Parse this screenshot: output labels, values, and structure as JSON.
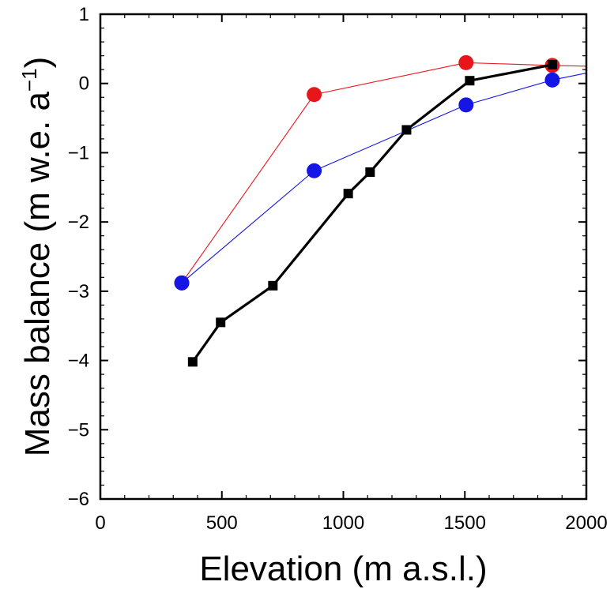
{
  "chart_data": {
    "type": "line",
    "title": "",
    "xlabel": "Elevation (m a.s.l.)",
    "ylabel_parts": {
      "main": "Mass balance (m w.e. a",
      "sup": "−1",
      "close": ")"
    },
    "xlim": [
      0,
      2000
    ],
    "ylim": [
      -6,
      1
    ],
    "xticks": [
      0,
      500,
      1000,
      1500,
      2000
    ],
    "xtick_labels": [
      "0",
      "500",
      "1000",
      "1500",
      "2000"
    ],
    "yticks": [
      -6,
      -5,
      -4,
      -3,
      -2,
      -1,
      0,
      1
    ],
    "ytick_labels": [
      "−6",
      "−5",
      "−4",
      "−3",
      "−2",
      "−1",
      "0",
      "1"
    ],
    "x_minor_step": 100,
    "y_minor_step": 0.2,
    "grid": false,
    "series": [
      {
        "color": "#e8161b",
        "marker": "circle",
        "line_width": "thin",
        "points": [
          {
            "x": 335,
            "y": -2.88
          },
          {
            "x": 880,
            "y": -0.16
          },
          {
            "x": 1505,
            "y": 0.3
          },
          {
            "x": 1860,
            "y": 0.26
          },
          {
            "x": 2000,
            "y": 0.25
          }
        ],
        "marker_count": 4
      },
      {
        "color": "#1515e6",
        "marker": "circle",
        "line_width": "thin",
        "points": [
          {
            "x": 335,
            "y": -2.88
          },
          {
            "x": 880,
            "y": -1.26
          },
          {
            "x": 1505,
            "y": -0.31
          },
          {
            "x": 1860,
            "y": 0.05
          },
          {
            "x": 2000,
            "y": 0.15
          }
        ],
        "marker_count": 4
      },
      {
        "color": "#000000",
        "marker": "square",
        "line_width": "thick",
        "points": [
          {
            "x": 380,
            "y": -4.02
          },
          {
            "x": 495,
            "y": -3.45
          },
          {
            "x": 710,
            "y": -2.92
          },
          {
            "x": 1020,
            "y": -1.59
          },
          {
            "x": 1110,
            "y": -1.28
          },
          {
            "x": 1260,
            "y": -0.67
          },
          {
            "x": 1520,
            "y": 0.04
          },
          {
            "x": 1860,
            "y": 0.27
          }
        ],
        "marker_count": 8
      }
    ]
  }
}
